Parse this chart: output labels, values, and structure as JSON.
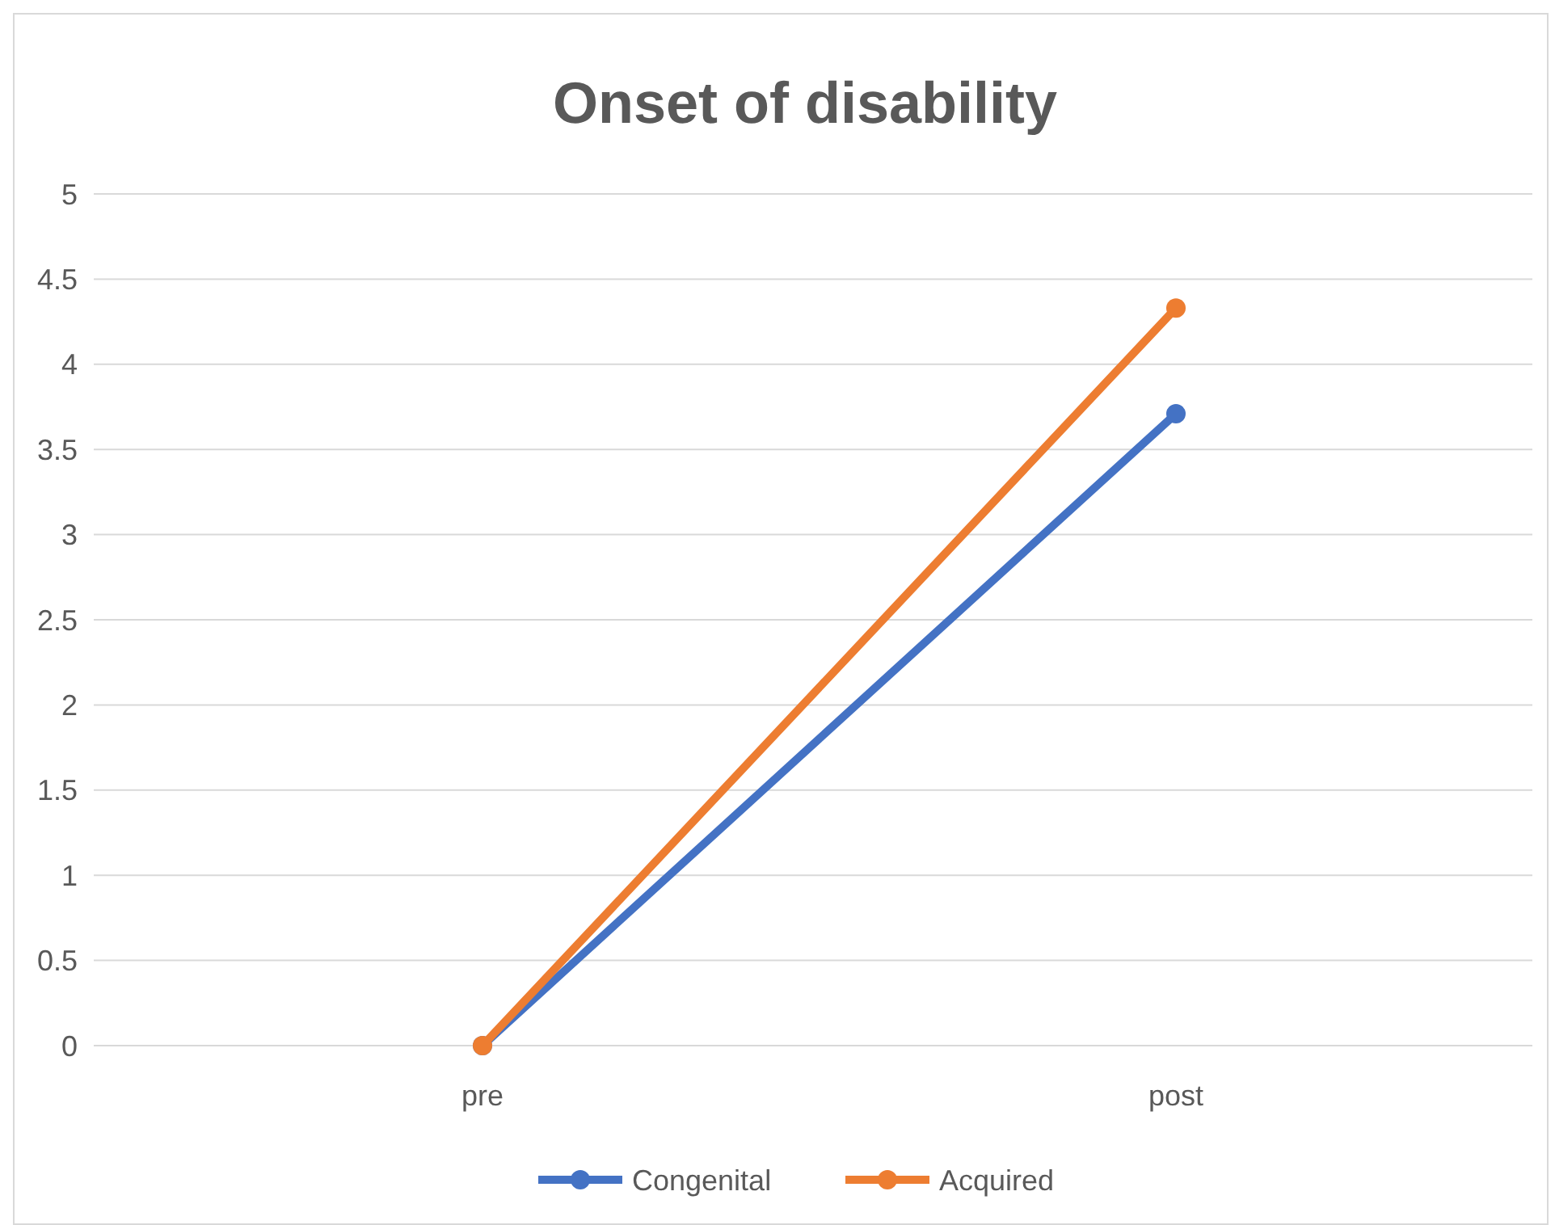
{
  "chart_data": {
    "type": "line",
    "title": "Onset of disability",
    "categories": [
      "pre",
      "post"
    ],
    "series": [
      {
        "name": "Congenital",
        "color": "#4472c4",
        "values": [
          0,
          3.71
        ]
      },
      {
        "name": "Acquired",
        "color": "#ed7d31",
        "values": [
          0,
          4.33
        ]
      }
    ],
    "ylim": [
      0,
      5
    ],
    "yticks": [
      0,
      0.5,
      1,
      1.5,
      2,
      2.5,
      3,
      3.5,
      4,
      4.5,
      5
    ],
    "grid": "y",
    "legend": "bottom",
    "marker": "circle",
    "line_style": "solid"
  }
}
